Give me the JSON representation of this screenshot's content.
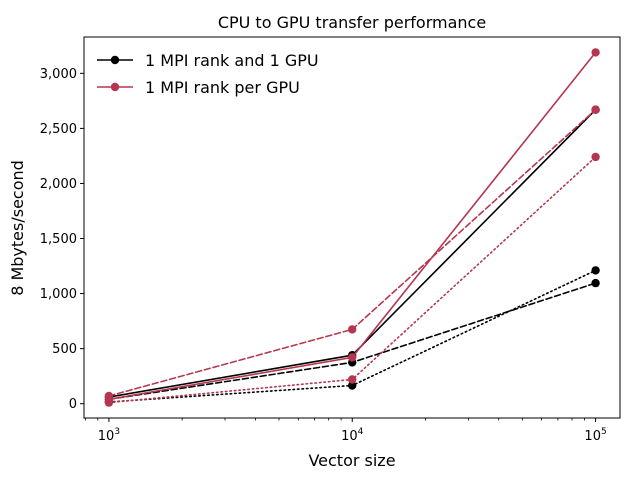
{
  "chart_data": {
    "type": "line",
    "title": "CPU to GPU transfer performance",
    "xlabel": "Vector size",
    "ylabel": "8 Mbytes/second",
    "xscale": "log",
    "x": [
      1000,
      10000,
      100000
    ],
    "xticks": [
      {
        "value": 1000,
        "base": "10",
        "exp": "3"
      },
      {
        "value": 10000,
        "base": "10",
        "exp": "4"
      },
      {
        "value": 100000,
        "base": "10",
        "exp": "5"
      }
    ],
    "xlim": [
      790,
      126000
    ],
    "ylim": [
      -130,
      3330
    ],
    "yticks": [
      {
        "value": 0,
        "label": "0"
      },
      {
        "value": 500,
        "label": "500"
      },
      {
        "value": 1000,
        "label": "1,000"
      },
      {
        "value": 1500,
        "label": "1,500"
      },
      {
        "value": 2000,
        "label": "2,000"
      },
      {
        "value": 2500,
        "label": "2,500"
      },
      {
        "value": 3000,
        "label": "3,000"
      }
    ],
    "grid": false,
    "legend_position": "top-left",
    "legend": [
      {
        "label": "1 MPI rank and 1 GPU",
        "color": "#000000"
      },
      {
        "label": "1 MPI rank per GPU",
        "color": "#b5374f"
      }
    ],
    "series": [
      {
        "group": "1 MPI rank and 1 GPU",
        "color": "#000000",
        "style": "solid",
        "values": [
          60,
          440,
          2670
        ]
      },
      {
        "group": "1 MPI rank and 1 GPU",
        "color": "#000000",
        "style": "dashed",
        "values": [
          40,
          375,
          1095
        ]
      },
      {
        "group": "1 MPI rank and 1 GPU",
        "color": "#000000",
        "style": "dotted",
        "values": [
          15,
          165,
          1210
        ]
      },
      {
        "group": "1 MPI rank per GPU",
        "color": "#b5374f",
        "style": "solid",
        "values": [
          40,
          420,
          3190
        ]
      },
      {
        "group": "1 MPI rank per GPU",
        "color": "#b5374f",
        "style": "dashed",
        "values": [
          70,
          675,
          2670
        ]
      },
      {
        "group": "1 MPI rank per GPU",
        "color": "#b5374f",
        "style": "dotted",
        "values": [
          10,
          220,
          2240
        ]
      }
    ]
  }
}
